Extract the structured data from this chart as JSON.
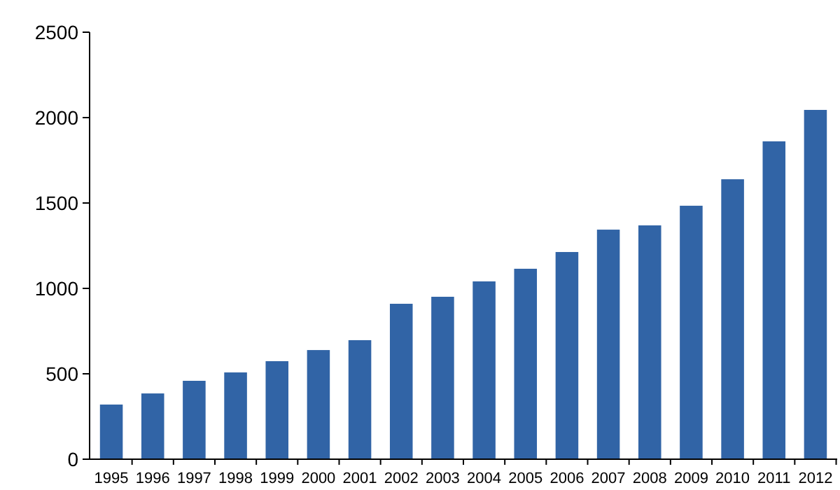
{
  "chart_data": {
    "type": "bar",
    "categories": [
      "1995",
      "1996",
      "1997",
      "1998",
      "1999",
      "2000",
      "2001",
      "2002",
      "2003",
      "2004",
      "2005",
      "2006",
      "2007",
      "2008",
      "2009",
      "2010",
      "2011",
      "2012"
    ],
    "values": [
      320,
      385,
      459,
      508,
      574,
      639,
      697,
      910,
      951,
      1041,
      1115,
      1213,
      1344,
      1369,
      1484,
      1639,
      1861,
      2045
    ],
    "color": "#3164a6",
    "ylim": [
      0,
      2500
    ],
    "yticks": [
      0,
      500,
      1000,
      1500,
      2000,
      2500
    ],
    "grid": false
  }
}
